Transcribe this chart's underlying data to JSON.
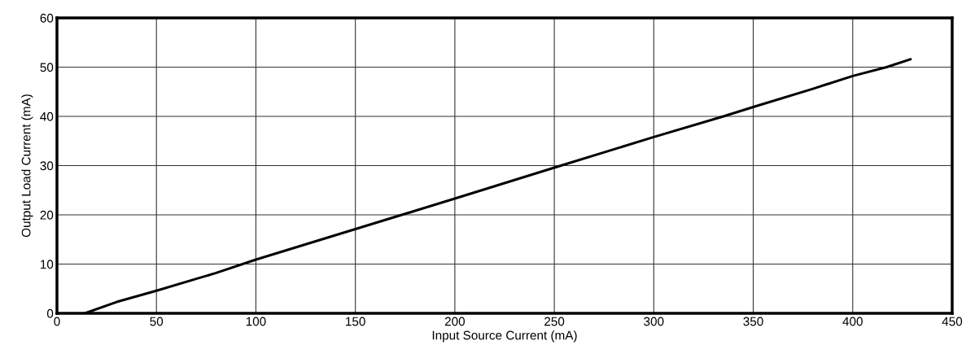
{
  "chart_data": {
    "type": "line",
    "xlabel": "Input Source Current (mA)",
    "ylabel": "Output Load Current (mA)",
    "x": [
      14,
      30,
      50,
      70,
      80,
      100,
      150,
      175,
      200,
      250,
      300,
      335,
      350,
      380,
      400,
      417,
      429
    ],
    "series": [
      {
        "color": "#000000",
        "values": [
          0,
          2.3,
          4.6,
          7,
          8.2,
          10.9,
          17.1,
          20.2,
          23.3,
          29.6,
          35.8,
          40,
          41.9,
          45.6,
          48.2,
          50,
          51.6
        ]
      }
    ],
    "xlim": [
      0,
      450
    ],
    "xticks": [
      0,
      50,
      100,
      150,
      200,
      250,
      300,
      350,
      400,
      450
    ],
    "ylim": [
      0,
      60
    ],
    "yticks": [
      0,
      10,
      20,
      30,
      40,
      50,
      60
    ],
    "grid": true,
    "marker": "none",
    "line_style": "solid"
  }
}
